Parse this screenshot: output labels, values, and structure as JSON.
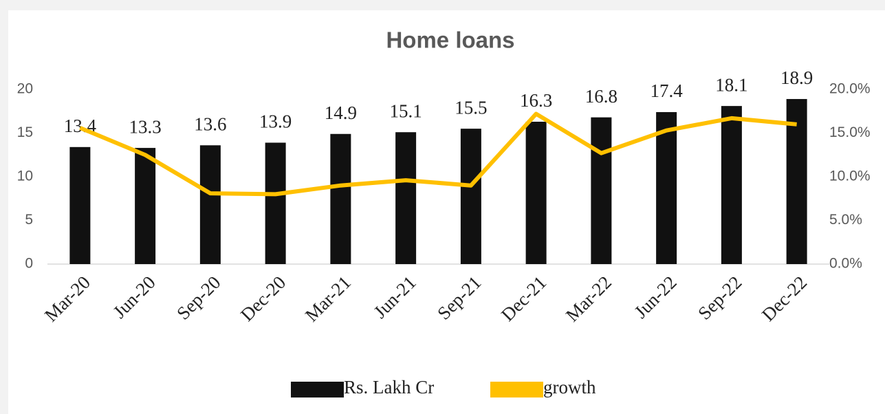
{
  "chart_data": {
    "type": "bar-line",
    "title": "Home loans",
    "categories": [
      "Mar-20",
      "Jun-20",
      "Sep-20",
      "Dec-20",
      "Mar-21",
      "Jun-21",
      "Sep-21",
      "Dec-21",
      "Mar-22",
      "Jun-22",
      "Sep-22",
      "Dec-22"
    ],
    "series": [
      {
        "name": "Rs. Lakh Cr",
        "color": "#111111",
        "type": "bar",
        "values": [
          13.4,
          13.3,
          13.6,
          13.9,
          14.9,
          15.1,
          15.5,
          16.3,
          16.8,
          17.4,
          18.1,
          18.9
        ]
      },
      {
        "name": "growth",
        "color": "#ffc000",
        "type": "line",
        "axis": "y2",
        "values": [
          15.6,
          12.5,
          8.1,
          8.0,
          9.0,
          9.6,
          9.0,
          17.2,
          12.7,
          15.3,
          16.7,
          16.0
        ]
      }
    ],
    "ylim": [
      0,
      20
    ],
    "yticks": [
      0,
      5,
      10,
      15,
      20
    ],
    "y2lim": [
      0,
      20
    ],
    "y2ticks": [
      {
        "value": 0,
        "label": "0.0%"
      },
      {
        "value": 5,
        "label": "5.0%"
      },
      {
        "value": 10,
        "label": "10.0%"
      },
      {
        "value": 15,
        "label": "15.0%"
      },
      {
        "value": 20,
        "label": "20.0%"
      }
    ]
  }
}
